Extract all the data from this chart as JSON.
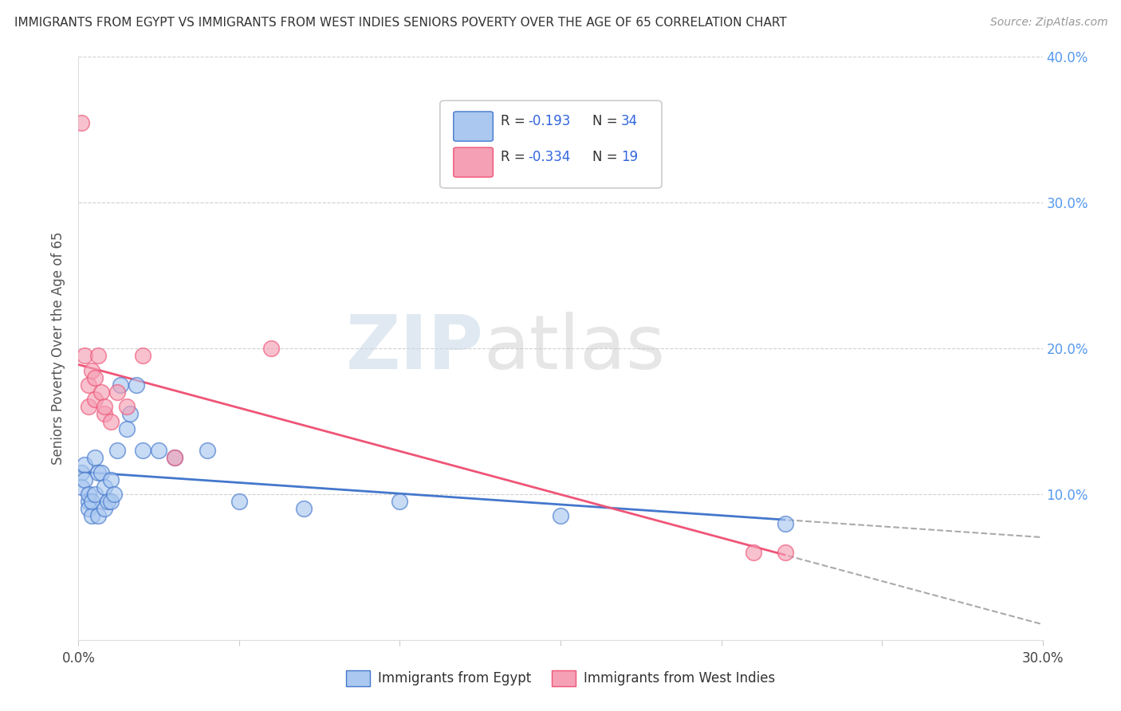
{
  "title": "IMMIGRANTS FROM EGYPT VS IMMIGRANTS FROM WEST INDIES SENIORS POVERTY OVER THE AGE OF 65 CORRELATION CHART",
  "source": "Source: ZipAtlas.com",
  "ylabel": "Seniors Poverty Over the Age of 65",
  "legend_label_1": "Immigrants from Egypt",
  "legend_label_2": "Immigrants from West Indies",
  "r1": -0.193,
  "n1": 34,
  "r2": -0.334,
  "n2": 19,
  "xlim": [
    0.0,
    0.3
  ],
  "ylim": [
    0.0,
    0.4
  ],
  "xticks": [
    0.0,
    0.05,
    0.1,
    0.15,
    0.2,
    0.25,
    0.3
  ],
  "yticks": [
    0.0,
    0.1,
    0.2,
    0.3,
    0.4
  ],
  "ytick_labels_right": [
    "",
    "10.0%",
    "20.0%",
    "30.0%",
    "40.0%"
  ],
  "xtick_labels": [
    "0.0%",
    "",
    "",
    "",
    "",
    "",
    "30.0%"
  ],
  "color_egypt": "#aac8f0",
  "color_wi": "#f5a0b5",
  "color_egypt_line": "#4477cc",
  "color_wi_line": "#ee5577",
  "watermark_zip": "ZIP",
  "watermark_atlas": "atlas",
  "egypt_x": [
    0.001,
    0.001,
    0.002,
    0.002,
    0.003,
    0.003,
    0.003,
    0.004,
    0.004,
    0.005,
    0.005,
    0.006,
    0.006,
    0.007,
    0.008,
    0.008,
    0.009,
    0.01,
    0.01,
    0.011,
    0.012,
    0.013,
    0.015,
    0.016,
    0.018,
    0.02,
    0.025,
    0.03,
    0.04,
    0.05,
    0.07,
    0.1,
    0.15,
    0.22
  ],
  "egypt_y": [
    0.115,
    0.105,
    0.12,
    0.11,
    0.095,
    0.1,
    0.09,
    0.085,
    0.095,
    0.125,
    0.1,
    0.115,
    0.085,
    0.115,
    0.105,
    0.09,
    0.095,
    0.11,
    0.095,
    0.1,
    0.13,
    0.175,
    0.145,
    0.155,
    0.175,
    0.13,
    0.13,
    0.125,
    0.13,
    0.095,
    0.09,
    0.095,
    0.085,
    0.08
  ],
  "wi_x": [
    0.001,
    0.002,
    0.003,
    0.003,
    0.004,
    0.005,
    0.005,
    0.006,
    0.007,
    0.008,
    0.008,
    0.01,
    0.012,
    0.015,
    0.02,
    0.03,
    0.06,
    0.21,
    0.22
  ],
  "wi_y": [
    0.355,
    0.195,
    0.175,
    0.16,
    0.185,
    0.165,
    0.18,
    0.195,
    0.17,
    0.155,
    0.16,
    0.15,
    0.17,
    0.16,
    0.195,
    0.125,
    0.2,
    0.06,
    0.06
  ]
}
